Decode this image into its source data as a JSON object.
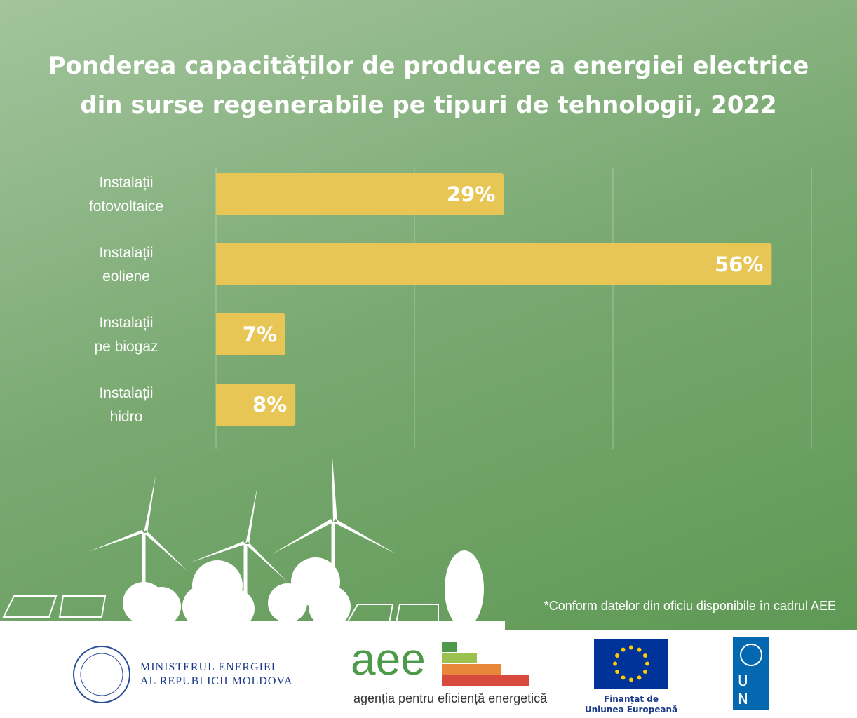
{
  "chart_data": {
    "type": "hbar",
    "title": "Ponderea capacităților de producere a energiei electrice\ndin surse regenerabile pe tipuri de tehnologii, 2022",
    "categories": [
      "Instalații\nfotovoltaice",
      "Instalații\neoliene",
      "Instalații\npe biogaz",
      "Instalații\nhidro"
    ],
    "values": [
      29,
      56,
      7,
      8
    ],
    "value_labels": [
      "29%",
      "56%",
      "7%",
      "8%"
    ],
    "color": "#e8c655",
    "xlim": [
      0,
      60
    ],
    "xticks": [
      0,
      20,
      40,
      60
    ],
    "grid": true
  },
  "footnote": "*Conform datelor din oficiu disponibile în cadrul AEE",
  "footer": {
    "ministry": "MINISTERUL ENERGIEI\nAL REPUBLICII MOLDOVA",
    "aee_logo": "aee",
    "aee_name": "agenția pentru eficiență energetică",
    "eu": "Finanțat de\nUniunea Europeană",
    "undp": "UNDP"
  }
}
